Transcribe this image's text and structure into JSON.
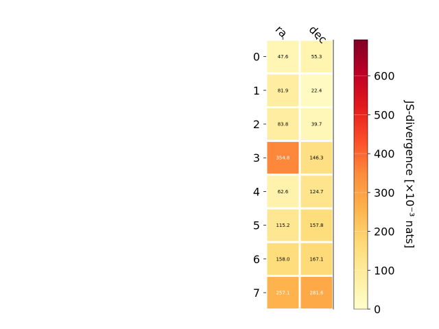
{
  "chart_data": {
    "type": "heatmap",
    "columns": [
      "ra",
      "dec"
    ],
    "rows": [
      "0",
      "1",
      "2",
      "3",
      "4",
      "5",
      "6",
      "7"
    ],
    "values": [
      [
        47.6,
        55.3
      ],
      [
        81.9,
        22.4
      ],
      [
        83.8,
        39.7
      ],
      [
        354.8,
        146.3
      ],
      [
        62.6,
        124.7
      ],
      [
        115.2,
        157.8
      ],
      [
        158.0,
        167.1
      ],
      [
        257.1,
        281.6
      ]
    ],
    "value_labels": [
      [
        "47.6",
        "55.3"
      ],
      [
        "81.9",
        "22.4"
      ],
      [
        "83.8",
        "39.7"
      ],
      [
        "354.8",
        "146.3"
      ],
      [
        "62.6",
        "124.7"
      ],
      [
        "115.2",
        "157.8"
      ],
      [
        "158.0",
        "167.1"
      ],
      [
        "257.1",
        "281.6"
      ]
    ],
    "colorbar": {
      "label": "JS-divergence [×10⁻³ nats]",
      "range": [
        0,
        693
      ],
      "ticks": [
        0,
        100,
        200,
        300,
        400,
        500,
        600
      ],
      "tick_labels": [
        "0",
        "100",
        "200",
        "300",
        "400",
        "500",
        "600"
      ],
      "colormap": "YlOrRd"
    },
    "grid": false
  }
}
